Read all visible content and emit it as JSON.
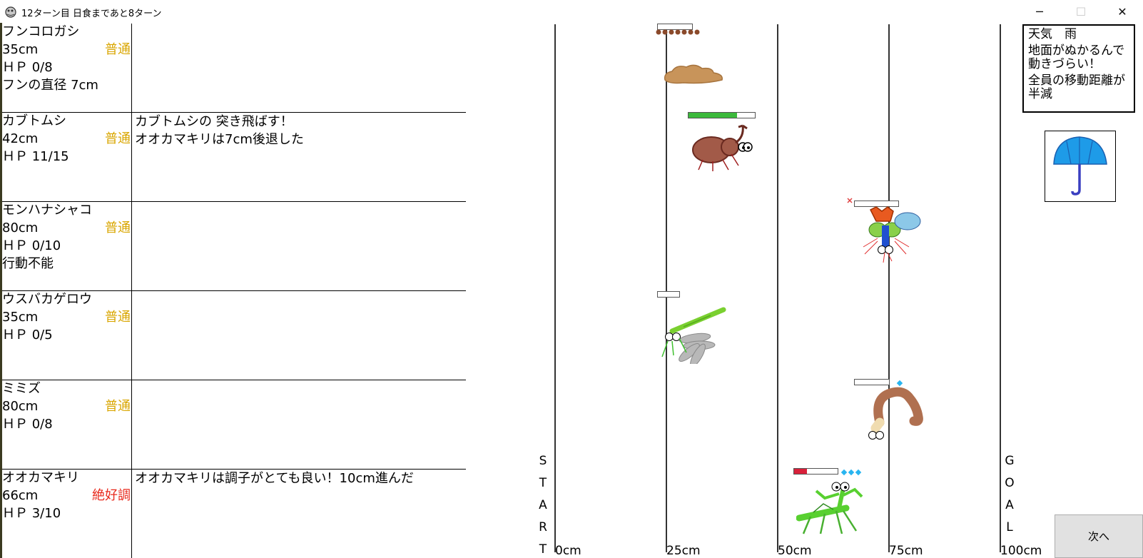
{
  "window": {
    "title": "12ターン目 日食まであと8ターン",
    "minimize": "─",
    "maximize": "☐",
    "close": "✕"
  },
  "insects": [
    {
      "name": "フンコロガシ",
      "position": "35cm",
      "condition": "普通",
      "hp": "ＨＰ 0/8",
      "extra": "フンの直径 7cm",
      "log": []
    },
    {
      "name": "カブトムシ",
      "position": "42cm",
      "condition": "普通",
      "hp": "ＨＰ 11/15",
      "extra": "",
      "log": [
        "カブトムシの 突き飛ばす！",
        "オオカマキリは7cm後退した"
      ]
    },
    {
      "name": "モンハナシャコ",
      "position": "80cm",
      "condition": "普通",
      "hp": "ＨＰ 0/10",
      "extra": "行動不能",
      "log": []
    },
    {
      "name": "ウスバカゲロウ",
      "position": "35cm",
      "condition": "普通",
      "hp": "ＨＰ 0/5",
      "extra": "",
      "log": []
    },
    {
      "name": "ミミズ",
      "position": "80cm",
      "condition": "普通",
      "hp": "ＨＰ 0/8",
      "extra": "",
      "log": []
    },
    {
      "name": "オオカマキリ",
      "position": "66cm",
      "condition": "絶好調",
      "hp": "ＨＰ 3/10",
      "extra": "",
      "log": [
        "オオカマキリは調子がとても良い！10cm進んだ"
      ]
    }
  ],
  "track": {
    "start_letters": [
      "S",
      "T",
      "A",
      "R",
      "T"
    ],
    "goal_letters": [
      "G",
      "O",
      "A",
      "L"
    ],
    "marks": [
      "0cm",
      "25cm",
      "50cm",
      "75cm",
      "100cm"
    ],
    "hp_fraction": {
      "dung_beetle": 0,
      "rhino_beetle": 0.73,
      "mantis_shrimp": 0,
      "antlion": 0,
      "earthworm": 0,
      "mantis": 0.3
    }
  },
  "weather": {
    "line1": "天気　雨",
    "line2": "地面がぬかるんで",
    "line3": "動きづらい！",
    "line4": "全員の移動距離が",
    "line5": "半減",
    "icon": "umbrella-icon"
  },
  "next_button": "次へ",
  "colors": {
    "normal": "#d9a600",
    "great": "#e8291c",
    "hp_green": "#3cb93c",
    "hp_red": "#d8203a",
    "buff_diamond": "#29b5f0"
  }
}
